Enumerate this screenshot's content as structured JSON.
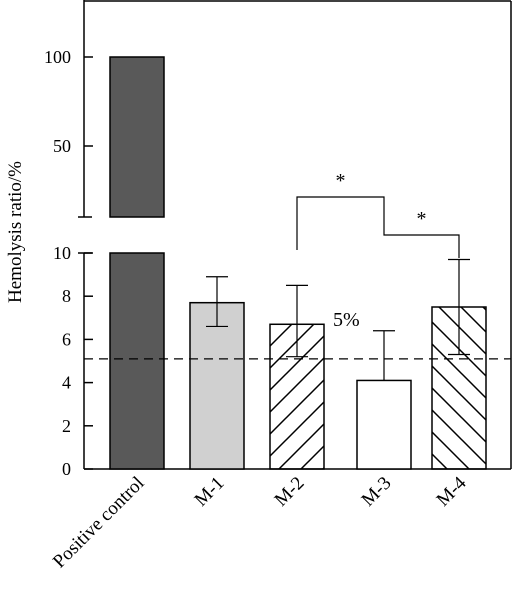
{
  "chart_data": {
    "type": "bar",
    "ylabel": "Hemolysis ratio/%",
    "categories": [
      "Positive control",
      "M-1",
      "M-2",
      "M-3",
      "M-4"
    ],
    "values": [
      100,
      7.7,
      6.7,
      4.1,
      7.5
    ],
    "errors_upper": [
      null,
      8.9,
      8.5,
      6.4,
      9.7
    ],
    "errors_lower": [
      null,
      6.6,
      5.2,
      null,
      5.3
    ],
    "fills": [
      "#595959",
      "#d0d0d0",
      "hatch-right",
      "#ffffff",
      "hatch-left"
    ],
    "y_axis_broken": true,
    "lower_segment": {
      "ylim": [
        0,
        10
      ],
      "ticks": [
        "0",
        "2",
        "4",
        "6",
        "8",
        "10"
      ]
    },
    "upper_segment": {
      "ticks": [
        "50",
        "100"
      ]
    },
    "reference_line": {
      "value": 5.1,
      "label": "5%",
      "style": "dashed"
    },
    "significance": [
      {
        "groups": [
          "M-2",
          "M-3"
        ],
        "label": "*"
      },
      {
        "groups": [
          "M-3",
          "M-4"
        ],
        "label": "*"
      }
    ],
    "grid": false,
    "legend": "none"
  }
}
